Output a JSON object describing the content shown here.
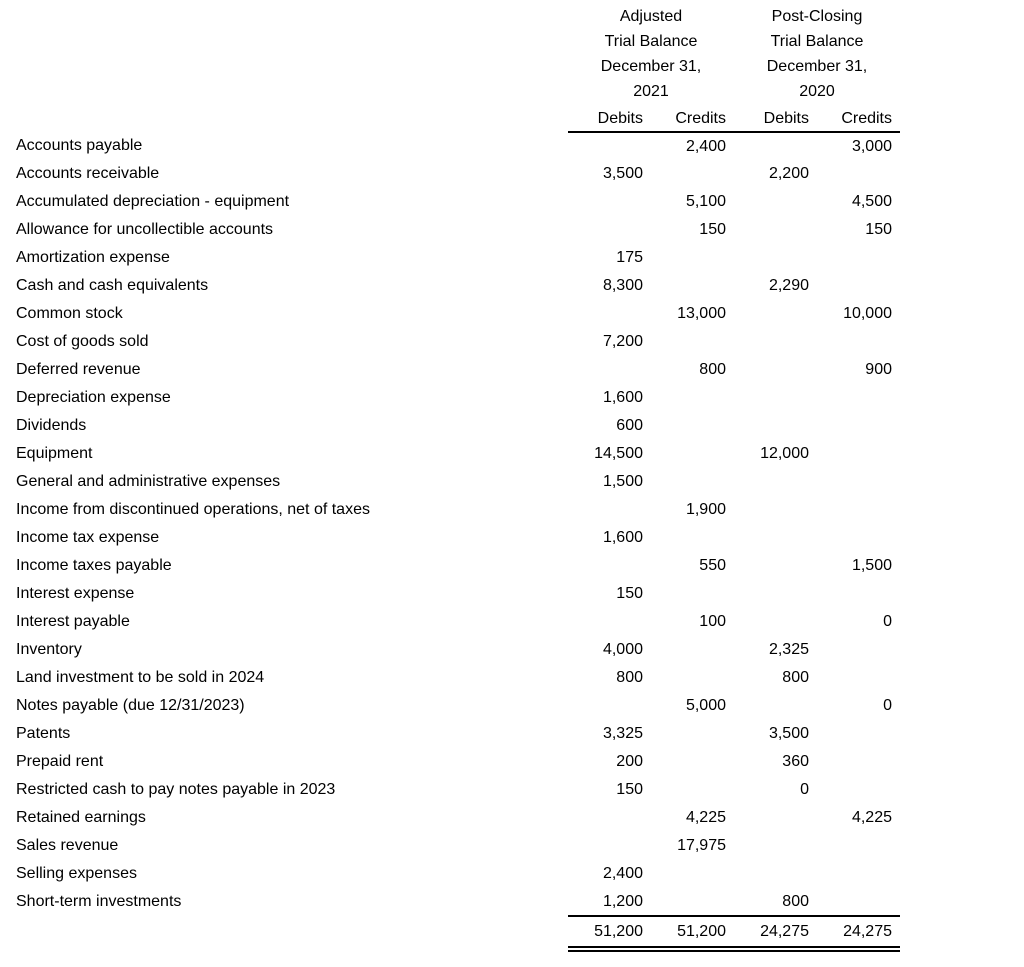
{
  "header": {
    "groups": [
      {
        "lines": [
          "Adjusted",
          "Trial Balance",
          "December 31,",
          "2021"
        ]
      },
      {
        "lines": [
          "Post-Closing",
          "Trial Balance",
          "December 31,",
          "2020"
        ]
      }
    ],
    "sub_columns": [
      "Debits",
      "Credits",
      "Debits",
      "Credits"
    ]
  },
  "rows": [
    {
      "account": "Accounts payable",
      "values": [
        "",
        "2,400",
        "",
        "3,000"
      ]
    },
    {
      "account": "Accounts receivable",
      "values": [
        "3,500",
        "",
        "2,200",
        ""
      ]
    },
    {
      "account": "Accumulated depreciation - equipment",
      "values": [
        "",
        "5,100",
        "",
        "4,500"
      ]
    },
    {
      "account": "Allowance for uncollectible accounts",
      "values": [
        "",
        "150",
        "",
        "150"
      ]
    },
    {
      "account": "Amortization expense",
      "values": [
        "175",
        "",
        "",
        ""
      ]
    },
    {
      "account": "Cash and cash equivalents",
      "values": [
        "8,300",
        "",
        "2,290",
        ""
      ]
    },
    {
      "account": "Common stock",
      "values": [
        "",
        "13,000",
        "",
        "10,000"
      ]
    },
    {
      "account": "Cost of goods sold",
      "values": [
        "7,200",
        "",
        "",
        ""
      ]
    },
    {
      "account": "Deferred revenue",
      "values": [
        "",
        "800",
        "",
        "900"
      ]
    },
    {
      "account": "Depreciation expense",
      "values": [
        "1,600",
        "",
        "",
        ""
      ]
    },
    {
      "account": "Dividends",
      "values": [
        "600",
        "",
        "",
        ""
      ]
    },
    {
      "account": "Equipment",
      "values": [
        "14,500",
        "",
        "12,000",
        ""
      ]
    },
    {
      "account": "General and administrative expenses",
      "values": [
        "1,500",
        "",
        "",
        ""
      ]
    },
    {
      "account": "Income from discontinued operations, net of taxes",
      "values": [
        "",
        "1,900",
        "",
        ""
      ]
    },
    {
      "account": "Income tax expense",
      "values": [
        "1,600",
        "",
        "",
        ""
      ]
    },
    {
      "account": "Income taxes payable",
      "values": [
        "",
        "550",
        "",
        "1,500"
      ]
    },
    {
      "account": "Interest expense",
      "values": [
        "150",
        "",
        "",
        ""
      ]
    },
    {
      "account": "Interest payable",
      "values": [
        "",
        "100",
        "",
        "0"
      ]
    },
    {
      "account": "Inventory",
      "values": [
        "4,000",
        "",
        "2,325",
        ""
      ]
    },
    {
      "account": "Land investment to be sold in 2024",
      "values": [
        "800",
        "",
        "800",
        ""
      ]
    },
    {
      "account": "Notes payable (due 12/31/2023)",
      "values": [
        "",
        "5,000",
        "",
        "0"
      ]
    },
    {
      "account": "Patents",
      "values": [
        "3,325",
        "",
        "3,500",
        ""
      ]
    },
    {
      "account": "Prepaid rent",
      "values": [
        "200",
        "",
        "360",
        ""
      ]
    },
    {
      "account": "Restricted cash to pay notes payable in 2023",
      "values": [
        "150",
        "",
        "0",
        ""
      ]
    },
    {
      "account": "Retained earnings",
      "values": [
        "",
        "4,225",
        "",
        "4,225"
      ]
    },
    {
      "account": "Sales revenue",
      "values": [
        "",
        "17,975",
        "",
        ""
      ]
    },
    {
      "account": "Selling expenses",
      "values": [
        "2,400",
        "",
        "",
        ""
      ]
    },
    {
      "account": "Short-term investments",
      "values": [
        "1,200",
        "",
        "800",
        ""
      ]
    }
  ],
  "totals": {
    "values": [
      "51,200",
      "51,200",
      "24,275",
      "24,275"
    ]
  }
}
